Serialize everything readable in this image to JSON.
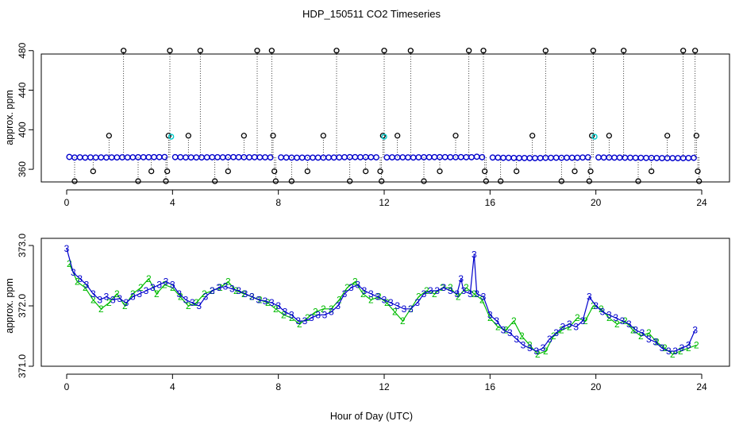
{
  "title": "HDP_150511  CO2 Timeseries",
  "xlabel": "Hour of Day (UTC)",
  "colors": {
    "base": "#0000cc",
    "highlight": "#00cccc",
    "black": "#000000",
    "green": "#00bb00"
  },
  "chart_data": [
    {
      "type": "scatter",
      "ylabel": "approx. ppm",
      "xlim": [
        0,
        24
      ],
      "ylim": [
        340,
        483
      ],
      "x_ticks": [
        "0",
        "4",
        "8",
        "12",
        "16",
        "20",
        "24"
      ],
      "y_ticks": [
        "360",
        "400",
        "440",
        "480"
      ],
      "grid": false,
      "baseline_points": [
        [
          0.1,
          372.5
        ],
        [
          0.3,
          371.9
        ],
        [
          0.5,
          372.1
        ],
        [
          0.7,
          371.8
        ],
        [
          0.9,
          372.0
        ],
        [
          1.1,
          371.9
        ],
        [
          1.3,
          372.0
        ],
        [
          1.5,
          371.9
        ],
        [
          1.7,
          372.0
        ],
        [
          1.9,
          372.0
        ],
        [
          2.1,
          372.1
        ],
        [
          2.3,
          372.0
        ],
        [
          2.5,
          372.1
        ],
        [
          2.7,
          372.2
        ],
        [
          2.9,
          372.2
        ],
        [
          3.1,
          372.2
        ],
        [
          3.3,
          372.3
        ],
        [
          3.5,
          372.3
        ],
        [
          3.7,
          372.4
        ],
        [
          4.1,
          372.3
        ],
        [
          4.3,
          372.2
        ],
        [
          4.5,
          372.0
        ],
        [
          4.7,
          372.0
        ],
        [
          4.9,
          372.0
        ],
        [
          5.1,
          372.0
        ],
        [
          5.3,
          372.1
        ],
        [
          5.5,
          372.2
        ],
        [
          5.7,
          372.2
        ],
        [
          5.9,
          372.1
        ],
        [
          6.1,
          372.2
        ],
        [
          6.3,
          372.3
        ],
        [
          6.5,
          372.2
        ],
        [
          6.7,
          372.2
        ],
        [
          6.9,
          372.1
        ],
        [
          7.1,
          372.2
        ],
        [
          7.3,
          372.1
        ],
        [
          7.5,
          372.1
        ],
        [
          7.7,
          372.0
        ],
        [
          8.1,
          372.0
        ],
        [
          8.3,
          371.9
        ],
        [
          8.5,
          371.8
        ],
        [
          8.7,
          371.7
        ],
        [
          8.9,
          371.8
        ],
        [
          9.1,
          371.7
        ],
        [
          9.3,
          371.8
        ],
        [
          9.5,
          371.8
        ],
        [
          9.7,
          371.8
        ],
        [
          9.9,
          371.9
        ],
        [
          10.1,
          371.9
        ],
        [
          10.3,
          372.0
        ],
        [
          10.5,
          372.2
        ],
        [
          10.7,
          372.3
        ],
        [
          10.9,
          372.3
        ],
        [
          11.1,
          372.2
        ],
        [
          11.3,
          372.3
        ],
        [
          11.5,
          372.2
        ],
        [
          11.7,
          372.1
        ],
        [
          12.1,
          372.0
        ],
        [
          12.3,
          372.1
        ],
        [
          12.5,
          372.0
        ],
        [
          12.7,
          372.1
        ],
        [
          12.9,
          372.0
        ],
        [
          13.1,
          371.9
        ],
        [
          13.3,
          372.1
        ],
        [
          13.5,
          372.2
        ],
        [
          13.7,
          372.2
        ],
        [
          13.9,
          372.3
        ],
        [
          14.1,
          372.3
        ],
        [
          14.3,
          372.3
        ],
        [
          14.5,
          372.2
        ],
        [
          14.7,
          372.2
        ],
        [
          14.9,
          372.3
        ],
        [
          15.1,
          372.2
        ],
        [
          15.3,
          372.2
        ],
        [
          15.5,
          372.7
        ],
        [
          15.7,
          372.2
        ],
        [
          16.1,
          371.9
        ],
        [
          16.3,
          371.8
        ],
        [
          16.5,
          371.6
        ],
        [
          16.7,
          371.6
        ],
        [
          16.9,
          371.5
        ],
        [
          17.1,
          371.4
        ],
        [
          17.3,
          371.4
        ],
        [
          17.5,
          371.3
        ],
        [
          17.7,
          371.3
        ],
        [
          17.9,
          371.4
        ],
        [
          18.1,
          371.6
        ],
        [
          18.3,
          371.6
        ],
        [
          18.5,
          371.7
        ],
        [
          18.7,
          371.6
        ],
        [
          18.9,
          371.7
        ],
        [
          19.1,
          371.7
        ],
        [
          19.3,
          371.7
        ],
        [
          19.5,
          371.9
        ],
        [
          19.7,
          372.1
        ],
        [
          20.1,
          372.0
        ],
        [
          20.3,
          371.9
        ],
        [
          20.5,
          371.9
        ],
        [
          20.7,
          371.8
        ],
        [
          20.9,
          371.8
        ],
        [
          21.1,
          371.7
        ],
        [
          21.3,
          371.7
        ],
        [
          21.5,
          371.6
        ],
        [
          21.7,
          371.6
        ],
        [
          21.9,
          371.5
        ],
        [
          22.1,
          371.5
        ],
        [
          22.3,
          371.4
        ],
        [
          22.5,
          371.3
        ],
        [
          22.7,
          371.3
        ],
        [
          22.9,
          371.3
        ],
        [
          23.1,
          371.3
        ],
        [
          23.3,
          371.3
        ],
        [
          23.5,
          371.4
        ],
        [
          23.7,
          371.6
        ]
      ],
      "spikes": [
        [
          0.3,
          348
        ],
        [
          1.0,
          358
        ],
        [
          1.6,
          394
        ],
        [
          2.15,
          480
        ],
        [
          2.7,
          348
        ],
        [
          3.2,
          358
        ],
        [
          3.75,
          348
        ],
        [
          3.8,
          358
        ],
        [
          3.85,
          394
        ],
        [
          3.9,
          480
        ],
        [
          4.6,
          394
        ],
        [
          5.05,
          480
        ],
        [
          5.6,
          348
        ],
        [
          6.1,
          358
        ],
        [
          6.7,
          394
        ],
        [
          7.2,
          480
        ],
        [
          7.75,
          480
        ],
        [
          7.8,
          394
        ],
        [
          7.85,
          358
        ],
        [
          7.9,
          348
        ],
        [
          8.5,
          348
        ],
        [
          9.1,
          358
        ],
        [
          9.7,
          394
        ],
        [
          10.2,
          480
        ],
        [
          10.7,
          348
        ],
        [
          11.3,
          358
        ],
        [
          11.85,
          358
        ],
        [
          11.9,
          348
        ],
        [
          11.95,
          394
        ],
        [
          12.0,
          480
        ],
        [
          12.5,
          394
        ],
        [
          13.0,
          480
        ],
        [
          13.5,
          348
        ],
        [
          14.1,
          358
        ],
        [
          14.7,
          394
        ],
        [
          15.2,
          480
        ],
        [
          15.75,
          480
        ],
        [
          15.8,
          358
        ],
        [
          15.85,
          348
        ],
        [
          16.4,
          348
        ],
        [
          17.0,
          358
        ],
        [
          17.6,
          394
        ],
        [
          18.1,
          480
        ],
        [
          18.7,
          348
        ],
        [
          19.2,
          358
        ],
        [
          19.75,
          348
        ],
        [
          19.8,
          358
        ],
        [
          19.85,
          394
        ],
        [
          19.9,
          480
        ],
        [
          20.5,
          394
        ],
        [
          21.05,
          480
        ],
        [
          21.6,
          348
        ],
        [
          22.1,
          358
        ],
        [
          22.7,
          394
        ],
        [
          23.3,
          480
        ],
        [
          23.75,
          480
        ],
        [
          23.8,
          394
        ],
        [
          23.85,
          358
        ],
        [
          23.9,
          348
        ]
      ],
      "highlight_points": [
        [
          3.95,
          393
        ],
        [
          12.0,
          393
        ],
        [
          19.95,
          393
        ]
      ]
    },
    {
      "type": "line",
      "ylabel": "approx. ppm",
      "xlim": [
        0,
        24
      ],
      "ylim": [
        371.0,
        373.0
      ],
      "x_ticks": [
        "0",
        "4",
        "8",
        "12",
        "16",
        "20",
        "24"
      ],
      "y_ticks": [
        "371.0",
        "372.0",
        "373.0"
      ],
      "grid": false,
      "marker_labels": [
        "3",
        "2"
      ],
      "series": [
        {
          "marker": "3",
          "x": [
            0.0,
            0.25,
            0.5,
            0.75,
            1.0,
            1.25,
            1.5,
            1.75,
            2.0,
            2.25,
            2.5,
            2.75,
            3.0,
            3.25,
            3.5,
            3.75,
            4.0,
            4.25,
            4.5,
            4.75,
            5.0,
            5.25,
            5.5,
            5.75,
            6.0,
            6.25,
            6.5,
            6.75,
            7.0,
            7.25,
            7.5,
            7.75,
            8.0,
            8.25,
            8.5,
            8.75,
            9.0,
            9.25,
            9.5,
            9.75,
            10.0,
            10.25,
            10.5,
            10.75,
            11.0,
            11.25,
            11.5,
            11.75,
            12.0,
            12.25,
            12.5,
            12.75,
            13.0,
            13.25,
            13.5,
            13.75,
            14.0,
            14.25,
            14.5,
            14.75,
            14.9,
            15.0,
            15.25,
            15.4,
            15.5,
            15.75,
            16.0,
            16.25,
            16.5,
            16.75,
            17.0,
            17.25,
            17.5,
            17.75,
            18.0,
            18.25,
            18.5,
            18.75,
            19.0,
            19.25,
            19.5,
            19.75,
            20.0,
            20.25,
            20.5,
            20.75,
            21.0,
            21.25,
            21.5,
            21.75,
            22.0,
            22.25,
            22.5,
            22.75,
            23.0,
            23.25,
            23.5,
            23.75
          ],
          "values": [
            372.95,
            372.55,
            372.45,
            372.35,
            372.2,
            372.1,
            372.15,
            372.1,
            372.12,
            372.05,
            372.15,
            372.2,
            372.25,
            372.3,
            372.35,
            372.4,
            372.35,
            372.2,
            372.1,
            372.05,
            372.0,
            372.15,
            372.25,
            372.3,
            372.32,
            372.28,
            372.25,
            372.2,
            372.15,
            372.1,
            372.08,
            372.05,
            372.0,
            371.9,
            371.85,
            371.75,
            371.75,
            371.8,
            371.85,
            371.85,
            371.9,
            372.0,
            372.2,
            372.3,
            372.35,
            372.25,
            372.2,
            372.15,
            372.1,
            372.05,
            372.0,
            371.95,
            371.95,
            372.05,
            372.2,
            372.25,
            372.25,
            372.3,
            372.25,
            372.2,
            372.45,
            372.25,
            372.2,
            372.85,
            372.2,
            372.15,
            371.85,
            371.75,
            371.6,
            371.55,
            371.45,
            371.35,
            371.3,
            371.25,
            371.3,
            371.45,
            371.55,
            371.65,
            371.7,
            371.65,
            371.75,
            372.15,
            372.0,
            371.9,
            371.85,
            371.8,
            371.75,
            371.7,
            371.6,
            371.55,
            371.45,
            371.4,
            371.3,
            371.25,
            371.25,
            371.3,
            371.35,
            371.6
          ]
        },
        {
          "marker": "2",
          "x": [
            0.1,
            0.4,
            0.7,
            1.0,
            1.3,
            1.6,
            1.9,
            2.2,
            2.5,
            2.8,
            3.1,
            3.4,
            3.7,
            4.0,
            4.3,
            4.6,
            4.9,
            5.2,
            5.5,
            5.8,
            6.1,
            6.4,
            6.7,
            7.0,
            7.3,
            7.6,
            7.9,
            8.2,
            8.5,
            8.8,
            9.1,
            9.4,
            9.7,
            10.0,
            10.3,
            10.6,
            10.9,
            11.2,
            11.5,
            11.8,
            12.1,
            12.4,
            12.7,
            13.0,
            13.3,
            13.6,
            13.9,
            14.2,
            14.5,
            14.8,
            15.1,
            15.4,
            15.7,
            16.0,
            16.3,
            16.6,
            16.9,
            17.2,
            17.5,
            17.8,
            18.1,
            18.4,
            18.7,
            19.0,
            19.3,
            19.6,
            19.9,
            20.2,
            20.5,
            20.8,
            21.1,
            21.4,
            21.7,
            22.0,
            22.3,
            22.6,
            22.9,
            23.2,
            23.5,
            23.8
          ],
          "values": [
            372.7,
            372.4,
            372.3,
            372.1,
            371.95,
            372.05,
            372.2,
            372.0,
            372.2,
            372.3,
            372.45,
            372.2,
            372.35,
            372.3,
            372.15,
            372.0,
            372.05,
            372.2,
            372.25,
            372.3,
            372.4,
            372.25,
            372.2,
            372.15,
            372.1,
            372.05,
            371.95,
            371.85,
            371.8,
            371.7,
            371.8,
            371.9,
            371.95,
            371.95,
            372.1,
            372.3,
            372.4,
            372.2,
            372.1,
            372.15,
            372.05,
            371.9,
            371.75,
            371.95,
            372.15,
            372.25,
            372.2,
            372.3,
            372.3,
            372.15,
            372.3,
            372.2,
            372.1,
            371.8,
            371.65,
            371.6,
            371.75,
            371.5,
            371.35,
            371.2,
            371.25,
            371.5,
            371.6,
            371.65,
            371.8,
            371.75,
            372.0,
            371.95,
            371.8,
            371.7,
            371.75,
            371.6,
            371.5,
            371.55,
            371.4,
            371.3,
            371.2,
            371.25,
            371.3,
            371.35
          ]
        }
      ]
    }
  ]
}
